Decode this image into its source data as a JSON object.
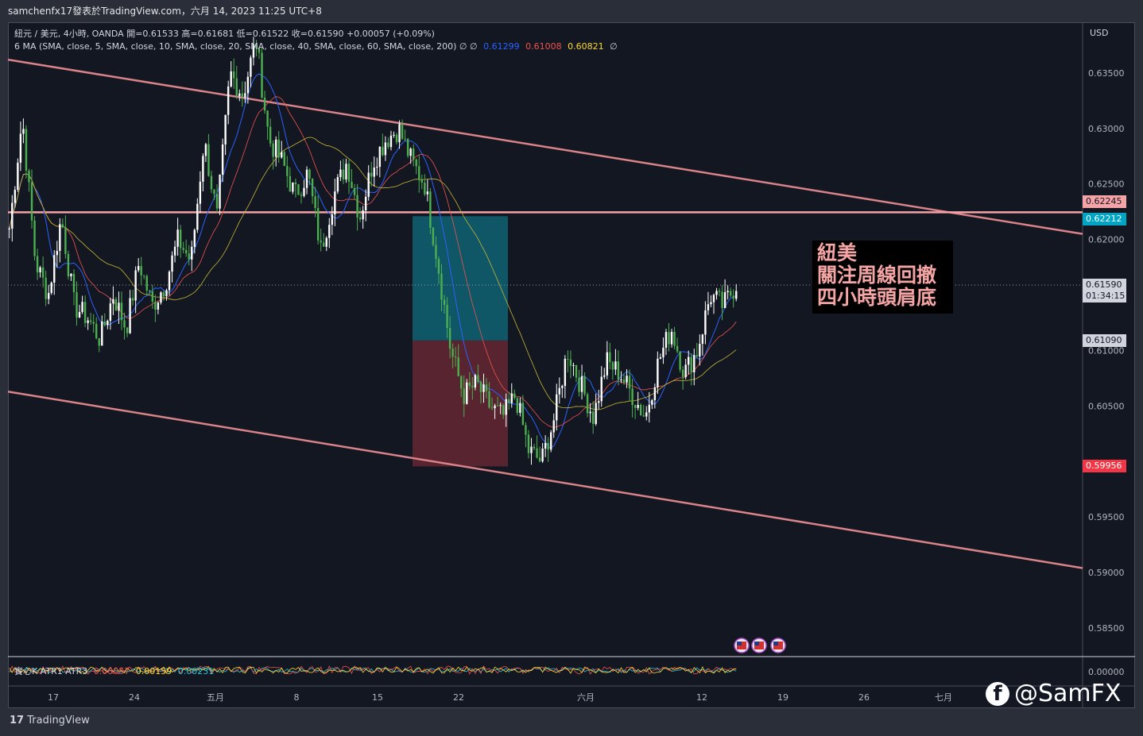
{
  "header": {
    "text": "samchenfx17發表於TradingView.com，六月 14, 2023 11:25 UTC+8"
  },
  "legend": {
    "line1": "紐元 / 美元, 4小時, OANDA  開=0.61533  高=0.61681  低=0.61522  收=0.61590  +0.00057 (+0.09%)",
    "line2_prefix": "6 MA (SMA, close, 5, SMA, close, 10, SMA, close, 20, SMA, close, 40, SMA, close, 60, SMA, close, 200)  ∅  ∅",
    "ma_values": [
      {
        "text": "0.61299",
        "color": "#2962ff"
      },
      {
        "text": "0.61008",
        "color": "#ef5350"
      },
      {
        "text": "0.60821",
        "color": "#fdd835"
      }
    ],
    "line2_suffix": "∅",
    "indicator_prefix": "實心K   ATR1  ATR3",
    "indicator_values": [
      {
        "text": "0.00057",
        "color": "#ef5350"
      },
      {
        "text": "0.00159",
        "color": "#fdd835"
      },
      {
        "text": "0.00231",
        "color": "#26c6da"
      }
    ]
  },
  "annotation": {
    "lines": [
      "紐美",
      "關注周線回撤",
      "四小時頭肩底"
    ]
  },
  "price_tags": [
    {
      "text": "0.62245",
      "bg": "#f4a3a6",
      "fg": "#131722",
      "y": 0.62245
    },
    {
      "text": "0.62212",
      "bg": "#00a5c5",
      "fg": "#ffffff",
      "y": 0.62212
    },
    {
      "text": "0.61590",
      "bg": "#d1d4dc",
      "fg": "#131722",
      "y": 0.6159
    },
    {
      "text": "01:34:15",
      "bg": "#d1d4dc",
      "fg": "#131722",
      "y": 0.6159
    },
    {
      "text": "0.61090",
      "bg": "#d1d4dc",
      "fg": "#131722",
      "y": 0.6109
    },
    {
      "text": "0.59956",
      "bg": "#f23645",
      "fg": "#ffffff",
      "y": 0.59956
    }
  ],
  "branding": {
    "footer_logo": "TradingView",
    "social_handle": "@SamFX",
    "social_icon": "facebook-icon"
  },
  "chart_data": {
    "type": "candlestick",
    "symbol": "紐元 / 美元",
    "currency_label": "USD",
    "y_ticks": [
      "0.63500",
      "0.63000",
      "0.62500",
      "0.62000",
      "0.61000",
      "0.60500",
      "0.59500",
      "0.59000",
      "0.58500"
    ],
    "y_tick_values": [
      0.635,
      0.63,
      0.625,
      0.62,
      0.61,
      0.605,
      0.595,
      0.59,
      0.585
    ],
    "indicator_tick": "0.00000",
    "x_ticks": [
      "17",
      "24",
      "五月",
      "8",
      "15",
      "22",
      "六月",
      "12",
      "19",
      "26",
      "七月"
    ],
    "ylim": [
      0.5825,
      0.6395
    ],
    "close_path": [
      0.621,
      0.631,
      0.618,
      0.615,
      0.622,
      0.614,
      0.613,
      0.611,
      0.615,
      0.612,
      0.618,
      0.614,
      0.616,
      0.62,
      0.618,
      0.629,
      0.622,
      0.635,
      0.633,
      0.638,
      0.629,
      0.627,
      0.624,
      0.626,
      0.619,
      0.624,
      0.627,
      0.622,
      0.627,
      0.629,
      0.63,
      0.627,
      0.625,
      0.618,
      0.61,
      0.606,
      0.607,
      0.605,
      0.604,
      0.606,
      0.601,
      0.6,
      0.604,
      0.61,
      0.607,
      0.604,
      0.609,
      0.608,
      0.606,
      0.604,
      0.609,
      0.612,
      0.608,
      0.61,
      0.615,
      0.614,
      0.616
    ],
    "channel_upper": {
      "start": 0.6362,
      "end": 0.6205
    },
    "channel_lower": {
      "start": 0.6063,
      "end": 0.5904
    },
    "resistance_level": 0.62245,
    "current_price": 0.6159,
    "position_box": {
      "top": 0.6221,
      "middle": 0.6109,
      "bottom": 0.59956
    }
  }
}
